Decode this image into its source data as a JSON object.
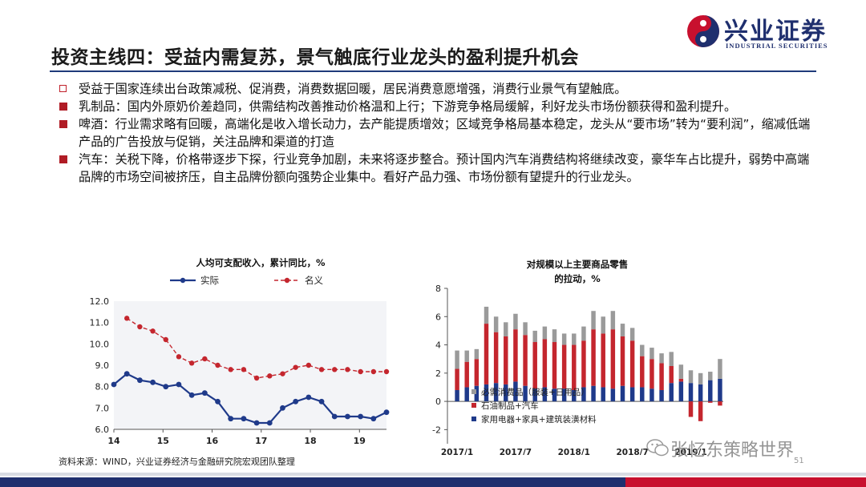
{
  "header": {
    "title": "投资主线四：受益内需复苏，景气触底行业龙头的盈利提升机会",
    "logo_cn": "兴业证券",
    "logo_en": "INDUSTRIAL SECURITIES"
  },
  "bullets": [
    {
      "style": "hollow",
      "text": "受益于国家连续出台政策减税、促消费，消费数据回暖，居民消费意愿增强，消费行业景气有望触底。"
    },
    {
      "style": "solid",
      "text": "乳制品：国内外原奶价差趋同，供需结构改善推动价格温和上行；下游竞争格局缓解，利好龙头市场份额获得和盈利提升。"
    },
    {
      "style": "solid",
      "text": "啤酒：行业需求略有回暖，高端化是收入增长动力，去产能提质增效；区域竞争格局基本稳定，龙头从“要市场”转为“要利润”，缩减低端产品的广告投放与促销，关注品牌和渠道的打造"
    },
    {
      "style": "solid",
      "text": "汽车：关税下降，价格带逐步下探，行业竞争加剧，未来将逐步整合。预计国内汽车消费结构将继续改变，豪华车占比提升，弱势中高端品牌的市场空间被挤压，自主品牌份额向强势企业集中。看好产品力强、市场份额有望提升的行业龙头。"
    }
  ],
  "footer": {
    "source": "资料来源：WIND，兴业证券经济与金融研究院宏观团队整理",
    "watermark": "张忆东策略世界",
    "page": "51"
  },
  "colors": {
    "navy": "#1f3a8a",
    "red": "#c4262e",
    "gray": "#9a9a9a",
    "logo_red": "#c8102e",
    "logo_blue": "#1f2f6e"
  },
  "chart_data": [
    {
      "type": "line",
      "title": "人均可支配收入，累计同比，%",
      "xlabel": "",
      "ylabel": "",
      "ylim": [
        6.0,
        12.0
      ],
      "yticks": [
        "6.0",
        "7.0",
        "8.0",
        "9.0",
        "10.0",
        "11.0",
        "12.0"
      ],
      "xticks": [
        "14",
        "15",
        "16",
        "17",
        "18",
        "19"
      ],
      "legend_position": "top",
      "grid": false,
      "series": [
        {
          "name": "实际",
          "color": "#1f3a8a",
          "values": [
            8.1,
            8.6,
            8.3,
            8.2,
            8.0,
            8.1,
            7.6,
            7.7,
            7.3,
            6.5,
            6.5,
            6.3,
            6.3,
            7.0,
            7.3,
            7.5,
            7.3,
            6.6,
            6.6,
            6.6,
            6.5,
            6.8
          ]
        },
        {
          "name": "名义",
          "color": "#c4262e",
          "values": [
            null,
            11.2,
            10.8,
            10.6,
            10.2,
            9.4,
            9.1,
            9.3,
            9.0,
            8.8,
            8.8,
            8.4,
            8.5,
            8.6,
            8.9,
            9.0,
            8.8,
            8.8,
            8.8,
            8.7,
            8.7,
            8.7
          ]
        }
      ]
    },
    {
      "type": "bar",
      "stacked": true,
      "title": "对规模以上主要商品零售的拉动，%",
      "ylim": [
        -3,
        8
      ],
      "yticks": [
        "-2",
        "0",
        "2",
        "4",
        "6",
        "8"
      ],
      "xticks": [
        "2017/1",
        "2017/7",
        "2018/1",
        "2018/7",
        "2019/1"
      ],
      "legend_position": "bottom",
      "series": [
        {
          "name": "家用电器+家具+建筑装潢材料",
          "color": "#1f3a8a",
          "values": [
            0.8,
            1.0,
            1.1,
            1.2,
            1.3,
            1.2,
            1.4,
            1.1,
            0.9,
            1.0,
            0.9,
            0.9,
            0.8,
            1.0,
            1.1,
            1.0,
            0.9,
            1.1,
            1.0,
            1.0,
            0.9,
            0.8,
            1.3,
            1.4,
            1.3,
            1.2,
            1.5,
            1.6
          ]
        },
        {
          "name": "石油制品+汽车",
          "color": "#c4262e",
          "values": [
            1.5,
            1.8,
            1.9,
            4.3,
            3.6,
            3.4,
            3.7,
            3.6,
            3.3,
            3.4,
            3.3,
            3.1,
            3.2,
            3.3,
            4.0,
            3.8,
            4.2,
            3.5,
            3.3,
            2.2,
            2.1,
            1.9,
            1.2,
            0.2,
            -1.1,
            -1.4,
            -0.1,
            -0.3
          ]
        },
        {
          "name": "必需消费品（服装+日用品）",
          "color": "#9a9a9a",
          "values": [
            1.3,
            0.8,
            0.7,
            1.2,
            1.1,
            1.0,
            1.1,
            0.9,
            0.8,
            0.9,
            0.9,
            0.8,
            0.8,
            1.0,
            1.3,
            1.2,
            1.3,
            0.9,
            0.9,
            0.8,
            0.8,
            0.7,
            1.0,
            1.0,
            0.9,
            0.8,
            0.6,
            1.4
          ]
        }
      ]
    }
  ]
}
